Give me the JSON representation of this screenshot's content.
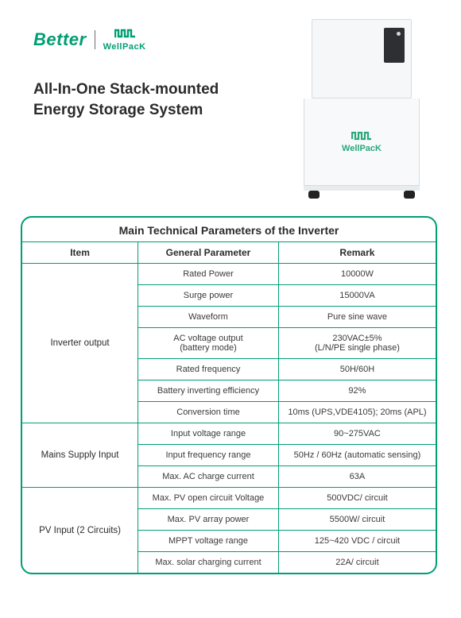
{
  "brand": {
    "better": "Better",
    "wellpack": "WellPacK"
  },
  "product_brand_on_unit": "WellPacK",
  "title": "All-In-One Stack-mounted Energy Storage System",
  "table": {
    "caption": "Main Technical Parameters of the Inverter",
    "columns": [
      "Item",
      "General Parameter",
      "Remark"
    ],
    "sections": [
      {
        "item": "Inverter output",
        "rows": [
          {
            "param": "Rated Power",
            "remark": "10000W"
          },
          {
            "param": "Surge power",
            "remark": "15000VA"
          },
          {
            "param": "Waveform",
            "remark": "Pure sine wave"
          },
          {
            "param": "AC voltage output\n(battery mode)",
            "remark": "230VAC±5%\n(L/N/PE single phase)"
          },
          {
            "param": "Rated frequency",
            "remark": "50H/60H"
          },
          {
            "param": "Battery inverting efficiency",
            "remark": "92%"
          },
          {
            "param": "Conversion time",
            "remark": "10ms (UPS,VDE4105); 20ms (APL)"
          }
        ]
      },
      {
        "item": "Mains Supply Input",
        "rows": [
          {
            "param": "Input voltage range",
            "remark": "90~275VAC"
          },
          {
            "param": "Input frequency range",
            "remark": "50Hz / 60Hz (automatic sensing)"
          },
          {
            "param": "Max. AC charge current",
            "remark": "63A"
          }
        ]
      },
      {
        "item": "PV Input (2 Circuits)",
        "rows": [
          {
            "param": "Max. PV open circuit Voltage",
            "remark": "500VDC/ circuit"
          },
          {
            "param": "Max. PV array power",
            "remark": "5500W/ circuit"
          },
          {
            "param": "MPPT voltage range",
            "remark": "125~420 VDC / circuit"
          },
          {
            "param": "Max. solar charging current",
            "remark": "22A/ circuit"
          }
        ]
      }
    ]
  },
  "style": {
    "accent": "#009e73",
    "text": "#2b2b2b",
    "caption_fontsize": 14,
    "header_fontsize": 12,
    "cell_fontsize": 11,
    "border_radius": 14,
    "page_bg": "#ffffff"
  }
}
